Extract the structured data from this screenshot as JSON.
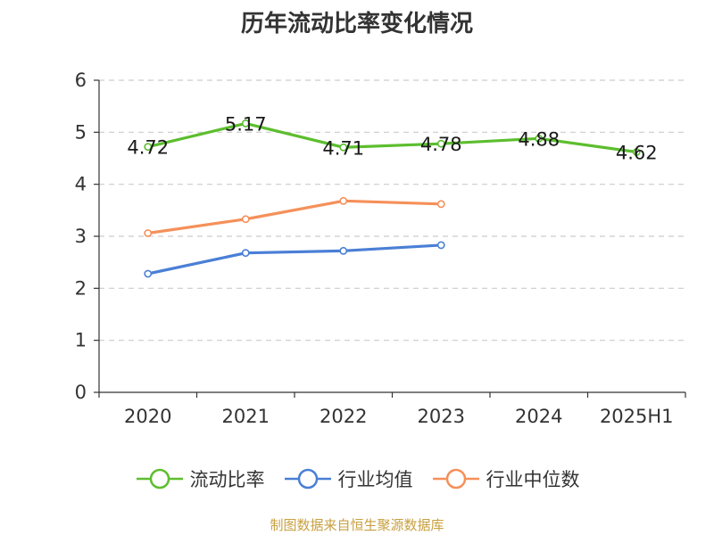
{
  "chart_data": {
    "type": "line",
    "title": "历年流动比率变化情况",
    "categories": [
      "2020",
      "2021",
      "2022",
      "2023",
      "2024",
      "2025H1"
    ],
    "ylim": [
      0,
      6
    ],
    "yticks": [
      0,
      1,
      2,
      3,
      4,
      5,
      6
    ],
    "grid": true,
    "legend_position": "bottom",
    "series": [
      {
        "name": "流动比率",
        "color": "#5cbe2e",
        "values": [
          4.72,
          5.17,
          4.71,
          4.78,
          4.88,
          4.62
        ],
        "labels": [
          "4.72",
          "5.17",
          "4.71",
          "4.78",
          "4.88",
          "4.62"
        ]
      },
      {
        "name": "行业均值",
        "color": "#4a7fd6",
        "values": [
          2.28,
          2.68,
          2.72,
          2.83,
          null,
          null
        ]
      },
      {
        "name": "行业中位数",
        "color": "#f5905a",
        "values": [
          3.06,
          3.33,
          3.68,
          3.62,
          null,
          null
        ]
      }
    ]
  },
  "footer": {
    "source": "制图数据来自恒生聚源数据库"
  }
}
